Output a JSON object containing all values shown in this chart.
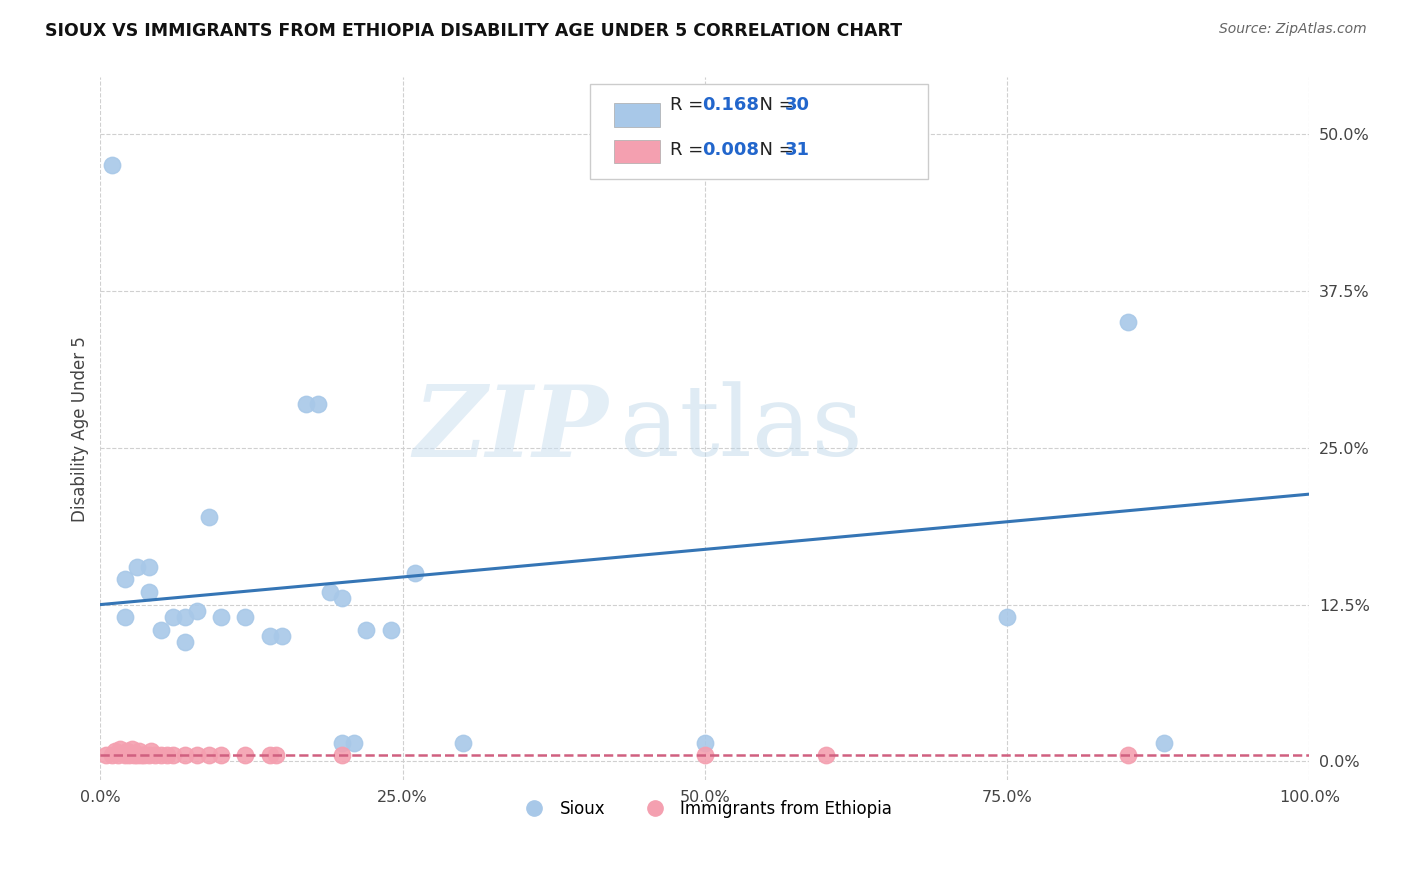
{
  "title": "SIOUX VS IMMIGRANTS FROM ETHIOPIA DISABILITY AGE UNDER 5 CORRELATION CHART",
  "source": "Source: ZipAtlas.com",
  "ylabel": "Disability Age Under 5",
  "xlim": [
    0.0,
    1.0
  ],
  "ylim": [
    -0.015,
    0.545
  ],
  "yticks": [
    0.0,
    0.125,
    0.25,
    0.375,
    0.5
  ],
  "ytick_labels": [
    "0.0%",
    "12.5%",
    "25.0%",
    "37.5%",
    "50.0%"
  ],
  "xticks": [
    0.0,
    0.25,
    0.5,
    0.75,
    1.0
  ],
  "xtick_labels": [
    "0.0%",
    "25.0%",
    "50.0%",
    "75.0%",
    "100.0%"
  ],
  "sioux_R": 0.168,
  "sioux_N": 30,
  "ethiopia_R": 0.008,
  "ethiopia_N": 31,
  "sioux_color": "#a8c8e8",
  "sioux_line_color": "#3575b5",
  "ethiopia_color": "#f4a0b0",
  "ethiopia_line_color": "#d06080",
  "sioux_points_x": [
    0.01,
    0.02,
    0.03,
    0.04,
    0.04,
    0.05,
    0.06,
    0.07,
    0.07,
    0.08,
    0.09,
    0.1,
    0.12,
    0.14,
    0.15,
    0.17,
    0.18,
    0.19,
    0.2,
    0.22,
    0.24,
    0.26,
    0.2,
    0.21,
    0.85,
    0.88,
    0.75,
    0.3,
    0.5,
    0.02
  ],
  "sioux_points_y": [
    0.475,
    0.145,
    0.155,
    0.135,
    0.155,
    0.105,
    0.115,
    0.115,
    0.095,
    0.12,
    0.195,
    0.115,
    0.115,
    0.1,
    0.1,
    0.285,
    0.285,
    0.135,
    0.13,
    0.105,
    0.105,
    0.15,
    0.015,
    0.015,
    0.35,
    0.015,
    0.115,
    0.015,
    0.015,
    0.115
  ],
  "ethiopia_points_x": [
    0.005,
    0.01,
    0.012,
    0.015,
    0.016,
    0.02,
    0.022,
    0.024,
    0.026,
    0.028,
    0.03,
    0.032,
    0.034,
    0.036,
    0.04,
    0.042,
    0.045,
    0.05,
    0.055,
    0.06,
    0.07,
    0.08,
    0.09,
    0.1,
    0.12,
    0.14,
    0.145,
    0.2,
    0.5,
    0.6,
    0.85
  ],
  "ethiopia_points_y": [
    0.005,
    0.005,
    0.008,
    0.005,
    0.01,
    0.005,
    0.008,
    0.005,
    0.01,
    0.005,
    0.005,
    0.008,
    0.005,
    0.005,
    0.005,
    0.008,
    0.005,
    0.005,
    0.005,
    0.005,
    0.005,
    0.005,
    0.005,
    0.005,
    0.005,
    0.005,
    0.005,
    0.005,
    0.005,
    0.005,
    0.005
  ],
  "watermark_zip": "ZIP",
  "watermark_atlas": "atlas",
  "background_color": "#ffffff",
  "grid_color": "#d0d0d0"
}
